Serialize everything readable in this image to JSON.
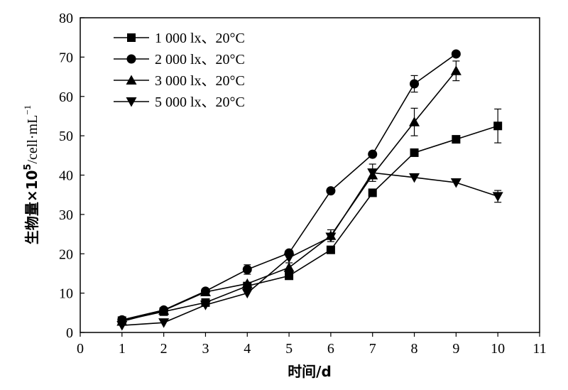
{
  "chart_data": {
    "type": "line",
    "x_axis": {
      "label": "时间/d",
      "range": [
        0,
        11
      ],
      "ticks": [
        "0",
        "1",
        "2",
        "3",
        "4",
        "5",
        "6",
        "7",
        "8",
        "9",
        "10",
        "11"
      ]
    },
    "y_axis": {
      "label_main": "生物量×10",
      "label_sup": "5",
      "label_unit": "/cell·mL",
      "label_unit_sup": "−1",
      "range": [
        0,
        80
      ],
      "ticks": [
        "0",
        "10",
        "20",
        "30",
        "40",
        "50",
        "60",
        "70",
        "80"
      ]
    },
    "grid": false,
    "legend_position": "top-left",
    "series": [
      {
        "name": "1 000 lx、20°C",
        "marker": "square",
        "x": [
          1,
          2,
          3,
          4,
          5,
          6,
          7,
          8,
          9,
          10
        ],
        "y": [
          3.0,
          5.3,
          7.6,
          11.8,
          14.4,
          21.0,
          35.5,
          45.7,
          49.1,
          52.5
        ],
        "err": [
          0,
          0,
          0,
          0,
          0,
          0,
          0,
          0,
          0,
          4.3
        ]
      },
      {
        "name": "2 000 lx、20°C",
        "marker": "circle",
        "x": [
          1,
          2,
          3,
          4,
          5,
          6,
          7,
          8,
          9
        ],
        "y": [
          3.2,
          5.7,
          10.5,
          16.0,
          20.2,
          36.0,
          45.3,
          63.2,
          70.8
        ],
        "err": [
          0,
          0,
          0,
          1.2,
          0,
          0,
          0,
          2.1,
          0
        ]
      },
      {
        "name": "3 000 lx、20°C",
        "marker": "triangle-up",
        "x": [
          1,
          2,
          3,
          4,
          5,
          6,
          7,
          8,
          9
        ],
        "y": [
          2.8,
          5.6,
          10.3,
          12.4,
          16.5,
          24.6,
          40.0,
          53.5,
          66.5
        ],
        "err": [
          0,
          0,
          0,
          0,
          1.2,
          1.5,
          0,
          3.5,
          2.5
        ]
      },
      {
        "name": "5 000 lx、20°C",
        "marker": "triangle-down",
        "x": [
          1,
          2,
          3,
          4,
          5,
          6,
          7,
          8,
          9,
          10
        ],
        "y": [
          1.8,
          2.5,
          7.0,
          10.0,
          19.0,
          24.3,
          40.6,
          39.4,
          38.1,
          34.6
        ],
        "err": [
          0,
          0,
          0,
          0,
          0,
          0,
          2.2,
          0,
          0,
          1.5
        ]
      }
    ]
  }
}
